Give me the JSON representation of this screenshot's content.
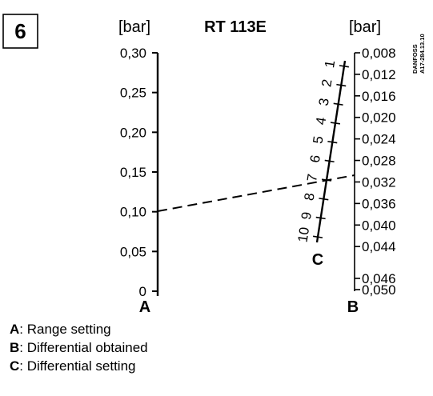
{
  "figure_number": "6",
  "header": {
    "left_unit": "[bar]",
    "model": "RT 113E",
    "right_unit": "[bar]"
  },
  "stamp": {
    "line1": "DANFOSS",
    "line2": "A17-284.13.10"
  },
  "scale_a": {
    "letter": "A",
    "ticks": [
      "0,30",
      "0,25",
      "0,20",
      "0,15",
      "0,10",
      "0,05",
      "0"
    ]
  },
  "scale_b": {
    "letter": "B",
    "ticks": [
      "0,008",
      "0,012",
      "0,016",
      "0,020",
      "0,024",
      "0,028",
      "0,032",
      "0,036",
      "0,040",
      "0,044",
      "0,046",
      "0,050"
    ]
  },
  "scale_c": {
    "letter": "C",
    "ticks": [
      "1",
      "2",
      "3",
      "4",
      "5",
      "6",
      "7",
      "8",
      "9",
      "10"
    ]
  },
  "legend": [
    {
      "key": "A",
      "text": ": Range setting"
    },
    {
      "key": "B",
      "text": ": Differential obtained"
    },
    {
      "key": "C",
      "text": ": Differential setting"
    }
  ],
  "colors": {
    "ink": "#000000",
    "background": "#ffffff"
  }
}
